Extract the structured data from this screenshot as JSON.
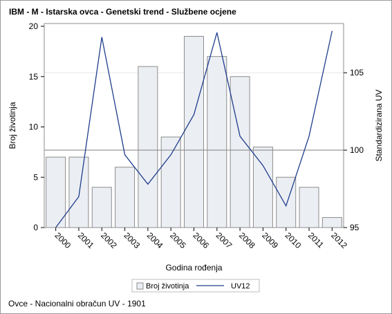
{
  "title": "IBM - M - Istarska ovca - Genetski trend - Službene ocjene",
  "footnote": "Ovce - Nacionalni obračun UV - 1901",
  "colors": {
    "bar_fill": "#ebeef3",
    "bar_stroke": "#8c8c8c",
    "line": "#1f3d8c",
    "reference_line": "#8c8c8c",
    "gridline": "#e6e6e6",
    "axis": "#000000"
  },
  "chart_data": {
    "type": "bar",
    "title": "IBM - M - Istarska ovca - Genetski trend - Službene ocjene",
    "xlabel": "Godina rođenja",
    "ylabel": "Broj životinja",
    "y2label": "Standardizirana UV",
    "categories": [
      "2000",
      "2001",
      "2002",
      "2003",
      "2004",
      "2005",
      "2006",
      "2007",
      "2008",
      "2009",
      "2010",
      "2011",
      "2012"
    ],
    "series": [
      {
        "name": "Broj životinja",
        "type": "bar",
        "axis": "left",
        "values": [
          7,
          7,
          4,
          6,
          16,
          9,
          19,
          17,
          15,
          8,
          5,
          4,
          1
        ]
      },
      {
        "name": "UV12",
        "type": "line",
        "axis": "right",
        "values": [
          95.0,
          97.0,
          107.3,
          99.7,
          97.8,
          99.7,
          102.3,
          107.6,
          100.9,
          99.0,
          96.4,
          100.9,
          107.7
        ]
      }
    ],
    "ylim": [
      0,
      20
    ],
    "yticks": [
      0,
      5,
      10,
      15,
      20
    ],
    "y2lim": [
      95,
      108
    ],
    "y2ticks": [
      95,
      100,
      105
    ],
    "reference_line_y2": 100,
    "legend": {
      "position": "bottom-center",
      "entries": [
        "Broj životinja",
        "UV12"
      ]
    },
    "grid": "horizontal (right axis ticks)"
  }
}
